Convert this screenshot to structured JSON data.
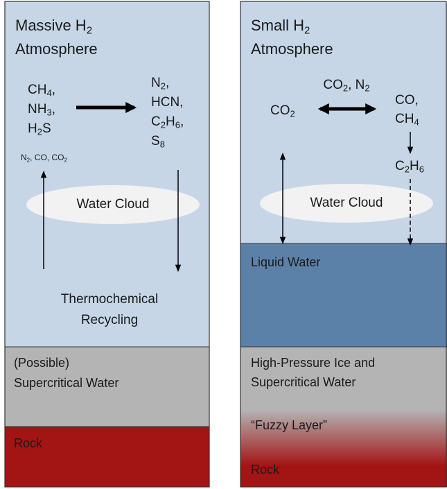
{
  "left": {
    "labels": [
      {
        "lines": [
          [
            {
              "t": "Massive H"
            },
            {
              "sub": "2"
            }
          ],
          [
            {
              "t": "Atmosphere"
            }
          ]
        ]
      },
      {
        "lines": [
          [
            {
              "t": "CH"
            },
            {
              "sub": "4"
            },
            {
              "t": ","
            }
          ],
          [
            {
              "t": "NH"
            },
            {
              "sub": "3"
            },
            {
              "t": ","
            }
          ],
          [
            {
              "t": "H"
            },
            {
              "sub": "2"
            },
            {
              "t": "S"
            }
          ]
        ]
      },
      {
        "lines": [
          [
            {
              "t": "N"
            },
            {
              "sub": "2"
            },
            {
              "t": ","
            }
          ],
          [
            {
              "t": "HCN,"
            }
          ],
          [
            {
              "t": "C"
            },
            {
              "sub": "2"
            },
            {
              "t": "H"
            },
            {
              "sub": "6"
            },
            {
              "t": ","
            }
          ],
          [
            {
              "t": "S"
            },
            {
              "sub": "8"
            }
          ]
        ]
      },
      {
        "lines": [
          [
            {
              "t": "N"
            },
            {
              "sub": "2"
            },
            {
              "t": ", CO, CO"
            },
            {
              "sub": "2"
            }
          ]
        ]
      },
      {
        "lines": [
          [
            {
              "t": "Water Cloud"
            }
          ]
        ]
      },
      {
        "lines": [
          [
            {
              "t": "Thermochemical"
            }
          ],
          [
            {
              "t": "Recycling"
            }
          ]
        ]
      },
      {
        "lines": [
          [
            {
              "t": "(Possible)"
            }
          ],
          [
            {
              "t": "Supercritical Water"
            }
          ]
        ]
      },
      {
        "lines": [
          [
            {
              "t": "Rock"
            }
          ]
        ]
      }
    ]
  },
  "right": {
    "labels": [
      {
        "lines": [
          [
            {
              "t": "Small H"
            },
            {
              "sub": "2"
            }
          ],
          [
            {
              "t": "Atmosphere"
            }
          ]
        ]
      },
      {
        "lines": [
          [
            {
              "t": "CO"
            },
            {
              "sub": "2"
            },
            {
              "t": ", N"
            },
            {
              "sub": "2"
            }
          ]
        ]
      },
      {
        "lines": [
          [
            {
              "t": "CO"
            },
            {
              "sub": "2"
            }
          ]
        ]
      },
      {
        "lines": [
          [
            {
              "t": "CO,"
            }
          ],
          [
            {
              "t": "CH"
            },
            {
              "sub": "4"
            }
          ]
        ]
      },
      {
        "lines": [
          [
            {
              "t": "C"
            },
            {
              "sub": "2"
            },
            {
              "t": "H"
            },
            {
              "sub": "6"
            }
          ]
        ]
      },
      {
        "lines": [
          [
            {
              "t": "Water Cloud"
            }
          ]
        ]
      },
      {
        "lines": [
          [
            {
              "t": "Liquid Water"
            }
          ]
        ]
      },
      {
        "lines": [
          [
            {
              "t": "High-Pressure Ice and"
            }
          ],
          [
            {
              "t": "Supercritical Water"
            }
          ]
        ]
      },
      {
        "lines": [
          [
            {
              "t": "“Fuzzy Layer”"
            }
          ]
        ]
      },
      {
        "lines": [
          [
            {
              "t": "Rock"
            }
          ]
        ]
      }
    ]
  }
}
